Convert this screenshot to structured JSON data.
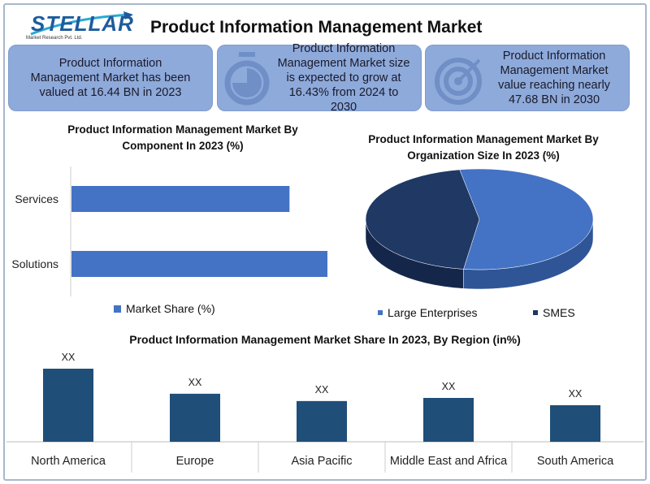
{
  "brand": {
    "name": "STELLAR",
    "tagline": "Market Research Pvt. Ltd."
  },
  "title": "Product Information Management Market",
  "stats": [
    {
      "icon": "none",
      "text": "Product Information Management Market has been valued at 16.44 BN in 2023"
    },
    {
      "icon": "stopwatch-icon",
      "text": "Product Information Management Market size is expected to grow at 16.43% from 2024 to 2030"
    },
    {
      "icon": "target-icon",
      "text": "Product Information Management Market value reaching nearly 47.68 BN in 2030"
    }
  ],
  "colors": {
    "light": "#4472c4",
    "dark": "#1f3864",
    "region": "#1f4e79",
    "box": "#8eaadb"
  },
  "chart_data": [
    {
      "type": "bar",
      "orientation": "horizontal",
      "title": "Product Information Management Market By Component In 2023 (%)",
      "categories": [
        "Services",
        "Solutions"
      ],
      "values": [
        46,
        54
      ],
      "legend": [
        "Market Share (%)"
      ],
      "legend_position": "bottom"
    },
    {
      "type": "pie",
      "title": "Product Information Management Market By Organization Size In 2023 (%)",
      "categories": [
        "Large Enterprises",
        "SMES"
      ],
      "values": [
        55,
        45
      ],
      "legend_position": "bottom"
    },
    {
      "type": "bar",
      "title": "Product Information Management Market Share In 2023, By Region (in%)",
      "categories": [
        "North America",
        "Europe",
        "Asia Pacific",
        "Middle East and Africa",
        "South America"
      ],
      "values": [
        35,
        23,
        19.5,
        21,
        17.5
      ],
      "data_labels": [
        "XX",
        "XX",
        "XX",
        "XX",
        "XX"
      ]
    }
  ]
}
